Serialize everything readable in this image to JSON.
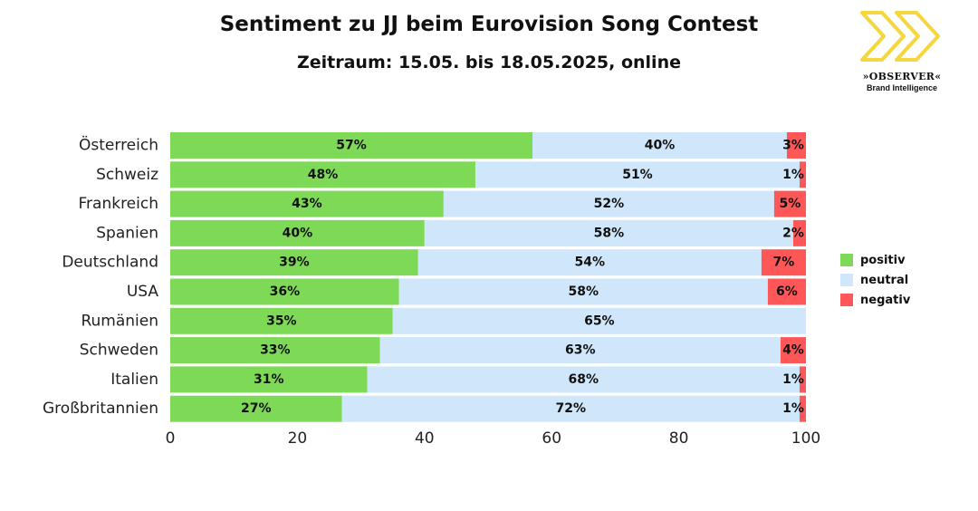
{
  "header": {
    "title": "Sentiment zu JJ beim Eurovision Song Contest",
    "subtitle": "Zeitraum: 15.05. bis 18.05.2025, online"
  },
  "logo": {
    "name": "»OBSERVER«",
    "tagline": "Brand Intelligence",
    "icon": "double-chevron-right-icon",
    "color": "#f5d63d"
  },
  "chart_data": {
    "type": "bar",
    "orientation": "horizontal",
    "stacked": true,
    "categories": [
      "Österreich",
      "Schweiz",
      "Frankreich",
      "Spanien",
      "Deutschland",
      "USA",
      "Rumänien",
      "Schweden",
      "Italien",
      "Großbritannien"
    ],
    "series": [
      {
        "name": "positiv",
        "color": "#7ed957",
        "values": [
          57,
          48,
          43,
          40,
          39,
          36,
          35,
          33,
          31,
          27
        ]
      },
      {
        "name": "neutral",
        "color": "#cfe6fb",
        "values": [
          40,
          51,
          52,
          58,
          54,
          58,
          65,
          63,
          68,
          72
        ]
      },
      {
        "name": "negativ",
        "color": "#ff5757",
        "values": [
          3,
          1,
          5,
          2,
          7,
          6,
          0,
          4,
          1,
          1
        ]
      }
    ],
    "data_labels": [
      [
        "57%",
        "48%",
        "43%",
        "40%",
        "39%",
        "36%",
        "35%",
        "33%",
        "31%",
        "27%"
      ],
      [
        "40%",
        "51%",
        "52%",
        "58%",
        "54%",
        "58%",
        "65%",
        "63%",
        "68%",
        "72%"
      ],
      [
        "3%",
        "1%",
        "5%",
        "2%",
        "7%",
        "6%",
        "",
        "4%",
        "1%",
        "1%"
      ]
    ],
    "xlim": [
      0,
      100
    ],
    "xticks": [
      "0",
      "20",
      "40",
      "60",
      "80",
      "100"
    ],
    "grid": false,
    "legend": "right"
  }
}
